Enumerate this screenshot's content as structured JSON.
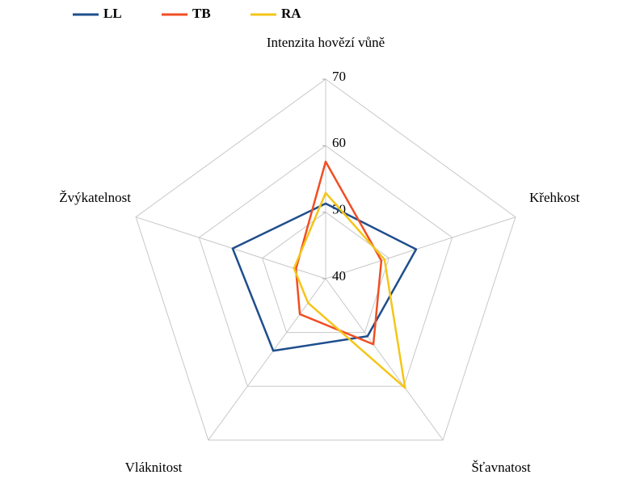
{
  "chart_data": {
    "type": "radar",
    "categories": [
      "Intenzita hovězí vůně",
      "Křehkost",
      "Šťavnatost",
      "Vláknitost",
      "Žvýkatelnost"
    ],
    "series": [
      {
        "name": "LL",
        "color": "#1f4e8c",
        "values": [
          51.3,
          54.3,
          50.7,
          53.4,
          54.7
        ]
      },
      {
        "name": "TB",
        "color": "#f04e23",
        "values": [
          57.6,
          48.8,
          52.2,
          46.6,
          44.7
        ]
      },
      {
        "name": "RA",
        "color": "#f5c518",
        "values": [
          52.9,
          49.3,
          60.3,
          44.5,
          45.0
        ]
      }
    ],
    "ylim": [
      40,
      70
    ],
    "yticks": [
      40,
      50,
      60,
      70
    ],
    "grid": true,
    "legend": "top"
  }
}
